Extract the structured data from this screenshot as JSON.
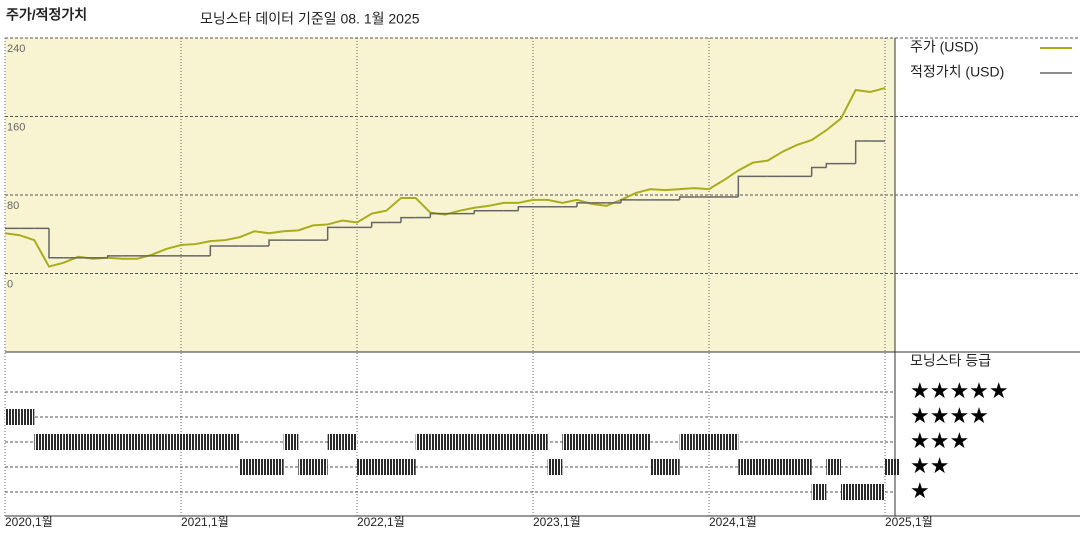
{
  "chart_data": {
    "type": "line",
    "title": "주가/적정가치",
    "subtitle": "모닝스타 데이터 기준일 08. 1월 2025",
    "x": [
      "2020-01",
      "2020-02",
      "2020-03",
      "2020-04",
      "2020-05",
      "2020-06",
      "2020-07",
      "2020-08",
      "2020-09",
      "2020-10",
      "2020-11",
      "2020-12",
      "2021-01",
      "2021-02",
      "2021-03",
      "2021-04",
      "2021-05",
      "2021-06",
      "2021-07",
      "2021-08",
      "2021-09",
      "2021-10",
      "2021-11",
      "2021-12",
      "2022-01",
      "2022-02",
      "2022-03",
      "2022-04",
      "2022-05",
      "2022-06",
      "2022-07",
      "2022-08",
      "2022-09",
      "2022-10",
      "2022-11",
      "2022-12",
      "2023-01",
      "2023-02",
      "2023-03",
      "2023-04",
      "2023-05",
      "2023-06",
      "2023-07",
      "2023-08",
      "2023-09",
      "2023-10",
      "2023-11",
      "2023-12",
      "2024-01",
      "2024-02",
      "2024-03",
      "2024-04",
      "2024-05",
      "2024-06",
      "2024-07",
      "2024-08",
      "2024-09",
      "2024-10",
      "2024-11",
      "2024-12",
      "2025-01"
    ],
    "xticks": [
      {
        "value": "2020-01",
        "label": "2020,1월"
      },
      {
        "value": "2021-01",
        "label": "2021,1월"
      },
      {
        "value": "2022-01",
        "label": "2022,1월"
      },
      {
        "value": "2023-01",
        "label": "2023,1월"
      },
      {
        "value": "2024-01",
        "label": "2024,1월"
      },
      {
        "value": "2025-01",
        "label": "2025,1월"
      }
    ],
    "ylim": [
      -80,
      240
    ],
    "yticks": [
      0,
      80,
      160,
      240
    ],
    "grid": true,
    "series": [
      {
        "name": "주가 (USD)",
        "color": "#a8ad1c",
        "values": [
          41,
          39,
          34,
          7,
          11,
          17,
          15,
          16,
          15,
          15,
          19,
          25,
          29,
          30,
          33,
          34,
          37,
          43,
          41,
          43,
          44,
          49,
          50,
          54,
          52,
          61,
          64,
          77,
          77,
          62,
          60,
          64,
          67,
          69,
          72,
          72,
          75,
          75,
          72,
          75,
          71,
          69,
          75,
          82,
          86,
          85,
          86,
          87,
          86,
          95,
          105,
          113,
          115,
          124,
          131,
          136,
          146,
          158,
          187,
          185,
          189
        ]
      },
      {
        "name": "적정가치 (USD)",
        "color": "#666666",
        "step": true,
        "values": [
          46,
          46,
          46,
          16,
          16,
          16,
          16,
          18,
          18,
          18,
          18,
          18,
          18,
          18,
          28,
          28,
          28,
          28,
          34,
          34,
          34,
          34,
          47,
          47,
          47,
          52,
          52,
          57,
          57,
          61,
          61,
          61,
          64,
          64,
          64,
          68,
          68,
          68,
          68,
          72,
          72,
          72,
          75,
          75,
          75,
          75,
          78,
          78,
          78,
          78,
          99,
          99,
          99,
          99,
          99,
          108,
          112,
          112,
          135,
          135,
          135
        ]
      }
    ],
    "rating": {
      "title": "모닝스타 등급",
      "color": "#2a2a2a",
      "levels": [
        "★",
        "★★",
        "★★★",
        "★★★★",
        "★★★★★"
      ],
      "values": [
        4,
        4,
        3,
        3,
        3,
        3,
        3,
        3,
        3,
        3,
        3,
        3,
        3,
        3,
        3,
        3,
        2,
        2,
        2,
        3,
        2,
        2,
        3,
        3,
        2,
        2,
        2,
        2,
        3,
        3,
        3,
        3,
        3,
        3,
        3,
        3,
        3,
        2,
        3,
        3,
        3,
        3,
        3,
        3,
        2,
        2,
        3,
        3,
        3,
        3,
        2,
        2,
        2,
        2,
        2,
        1,
        2,
        1,
        1,
        1,
        2
      ]
    }
  }
}
